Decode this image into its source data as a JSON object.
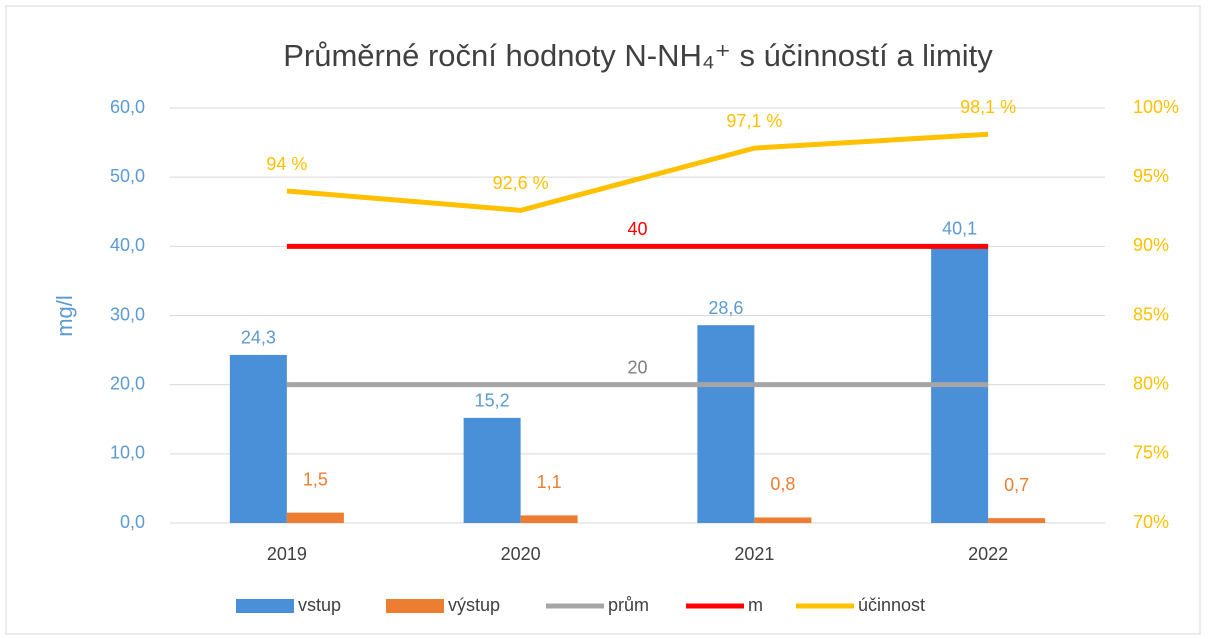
{
  "chart_data": {
    "type": "bar",
    "title": "Průměrné roční hodnoty N-NH₄⁺ s účinností a limity",
    "y_label": "mg/l",
    "categories": [
      "2019",
      "2020",
      "2021",
      "2022"
    ],
    "ylim": [
      0,
      60
    ],
    "yticks": [
      {
        "value": 0,
        "label": "0,0"
      },
      {
        "value": 10,
        "label": "10,0"
      },
      {
        "value": 20,
        "label": "20,0"
      },
      {
        "value": 30,
        "label": "30,0"
      },
      {
        "value": 40,
        "label": "40,0"
      },
      {
        "value": 50,
        "label": "50,0"
      },
      {
        "value": 60,
        "label": "60,0"
      }
    ],
    "y2lim": [
      70,
      100
    ],
    "y2ticks": [
      {
        "value": 70,
        "label": "70%"
      },
      {
        "value": 75,
        "label": "75%"
      },
      {
        "value": 80,
        "label": "80%"
      },
      {
        "value": 85,
        "label": "85%"
      },
      {
        "value": 90,
        "label": "90%"
      },
      {
        "value": 95,
        "label": "95%"
      },
      {
        "value": 100,
        "label": "100%"
      }
    ],
    "grid": true,
    "legend": "bottom",
    "series": [
      {
        "name": "vstup",
        "type": "bar",
        "color": "#4a90d9",
        "values": [
          24.3,
          15.2,
          28.6,
          40.1
        ],
        "value_labels": [
          "24,3",
          "15,2",
          "28,6",
          "40,1"
        ]
      },
      {
        "name": "výstup",
        "type": "bar",
        "color": "#ed7d31",
        "values": [
          1.5,
          1.1,
          0.8,
          0.7
        ],
        "value_labels": [
          "1,5",
          "1,1",
          "0,8",
          "0,7"
        ]
      },
      {
        "name": "prům",
        "type": "line",
        "color": "#a5a5a5",
        "values": [
          20,
          20,
          20,
          20
        ]
      },
      {
        "name": "m",
        "type": "line",
        "color": "#ff0000",
        "values": [
          40,
          40,
          40,
          40
        ]
      },
      {
        "name": "účinnost",
        "type": "line",
        "axis": "y2",
        "color": "#ffc000",
        "values": [
          94,
          92.6,
          97.1,
          98.1
        ],
        "value_labels": [
          "94 %",
          "92,6 %",
          "97,1 %",
          "98,1 %"
        ]
      }
    ]
  }
}
